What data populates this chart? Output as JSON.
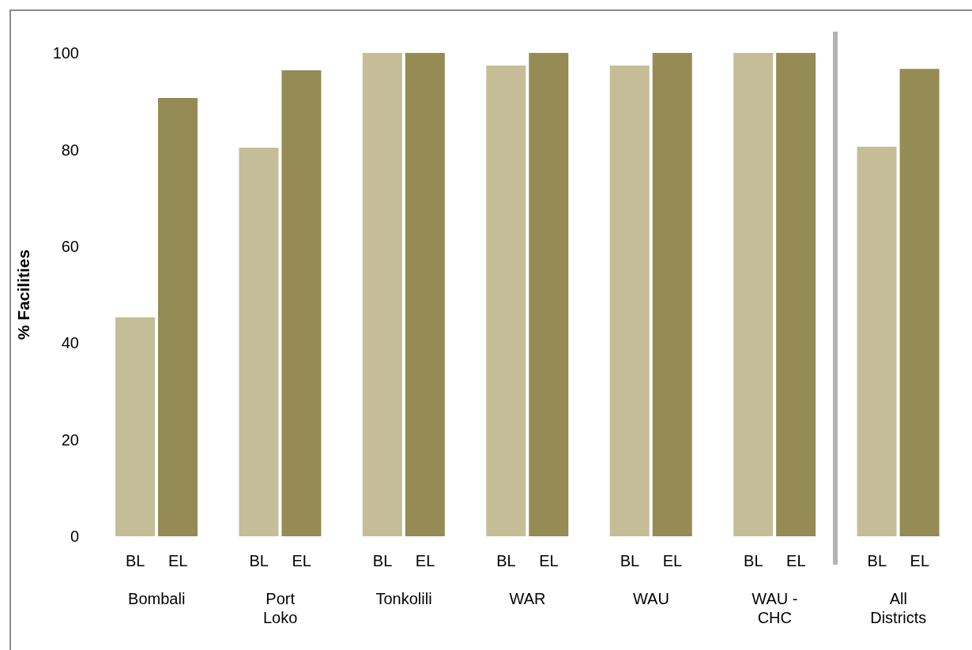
{
  "chart_data": {
    "type": "bar",
    "ylabel": "% Facilities",
    "categories": [
      "Bombali",
      "Port Loko",
      "Tonkolili",
      "WAR",
      "WAU",
      "WAU - CHC",
      "All Districts"
    ],
    "series": [
      {
        "name": "BL",
        "color": "#c5bd97",
        "values": [
          45.3,
          80.4,
          100,
          97.4,
          97.4,
          100,
          80.6
        ]
      },
      {
        "name": "EL",
        "color": "#958b54",
        "values": [
          90.7,
          96.4,
          100,
          100,
          100,
          100,
          96.7
        ]
      }
    ],
    "ylim": [
      0,
      100
    ],
    "yticks": [
      0,
      20,
      40,
      60,
      80,
      100
    ],
    "grid": false,
    "legend": false
  }
}
